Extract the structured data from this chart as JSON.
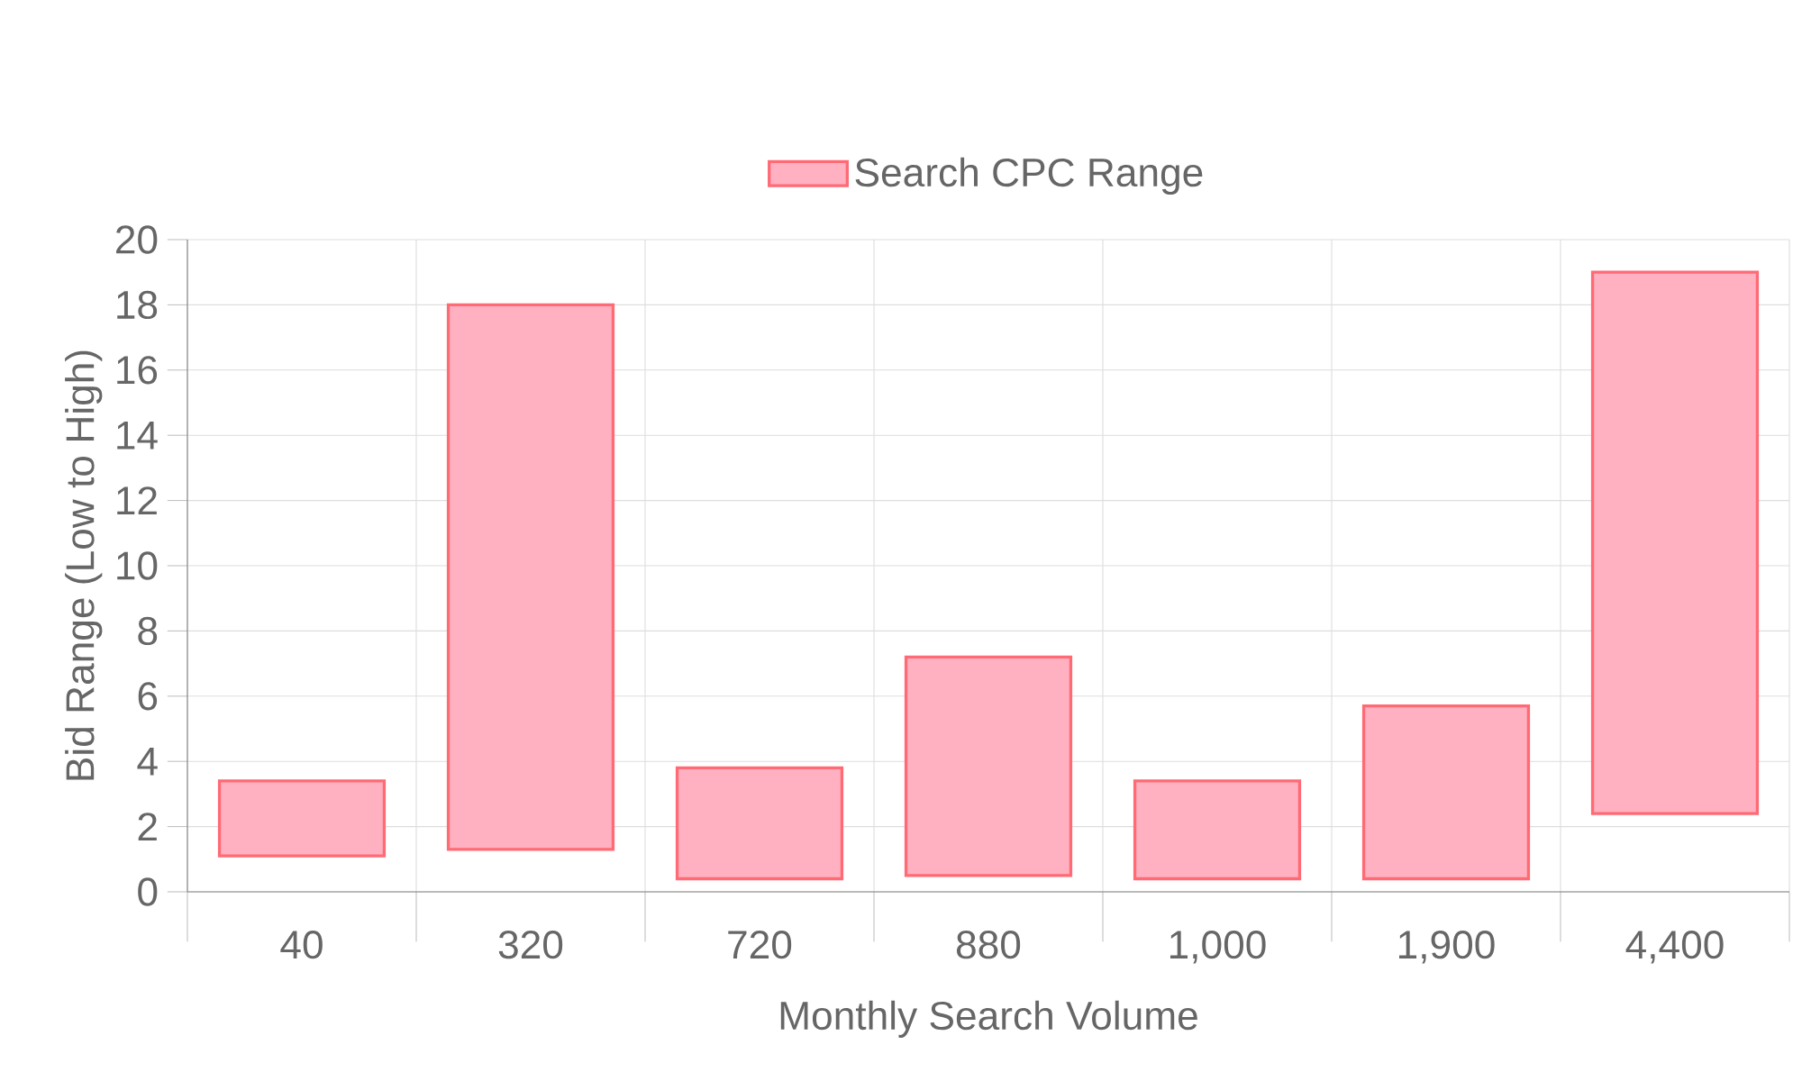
{
  "chart_data": {
    "type": "bar",
    "categories": [
      "40",
      "320",
      "720",
      "880",
      "1,000",
      "1,900",
      "4,400"
    ],
    "series": [
      {
        "name": "Search CPC Range",
        "color": "#ffb1c1",
        "base": [
          1.1,
          1.3,
          0.4,
          0.5,
          0.4,
          0.4,
          2.4
        ],
        "values": [
          2.3,
          16.7,
          3.4,
          6.7,
          3.0,
          5.3,
          16.6
        ]
      }
    ],
    "xlabel": "Monthly Search Volume",
    "ylabel": "Bid Range (Low to High)",
    "ylim": [
      0,
      20
    ],
    "yticks": [
      0,
      2,
      4,
      6,
      8,
      10,
      12,
      14,
      16,
      18,
      20
    ],
    "grid": true,
    "legend": "top"
  }
}
